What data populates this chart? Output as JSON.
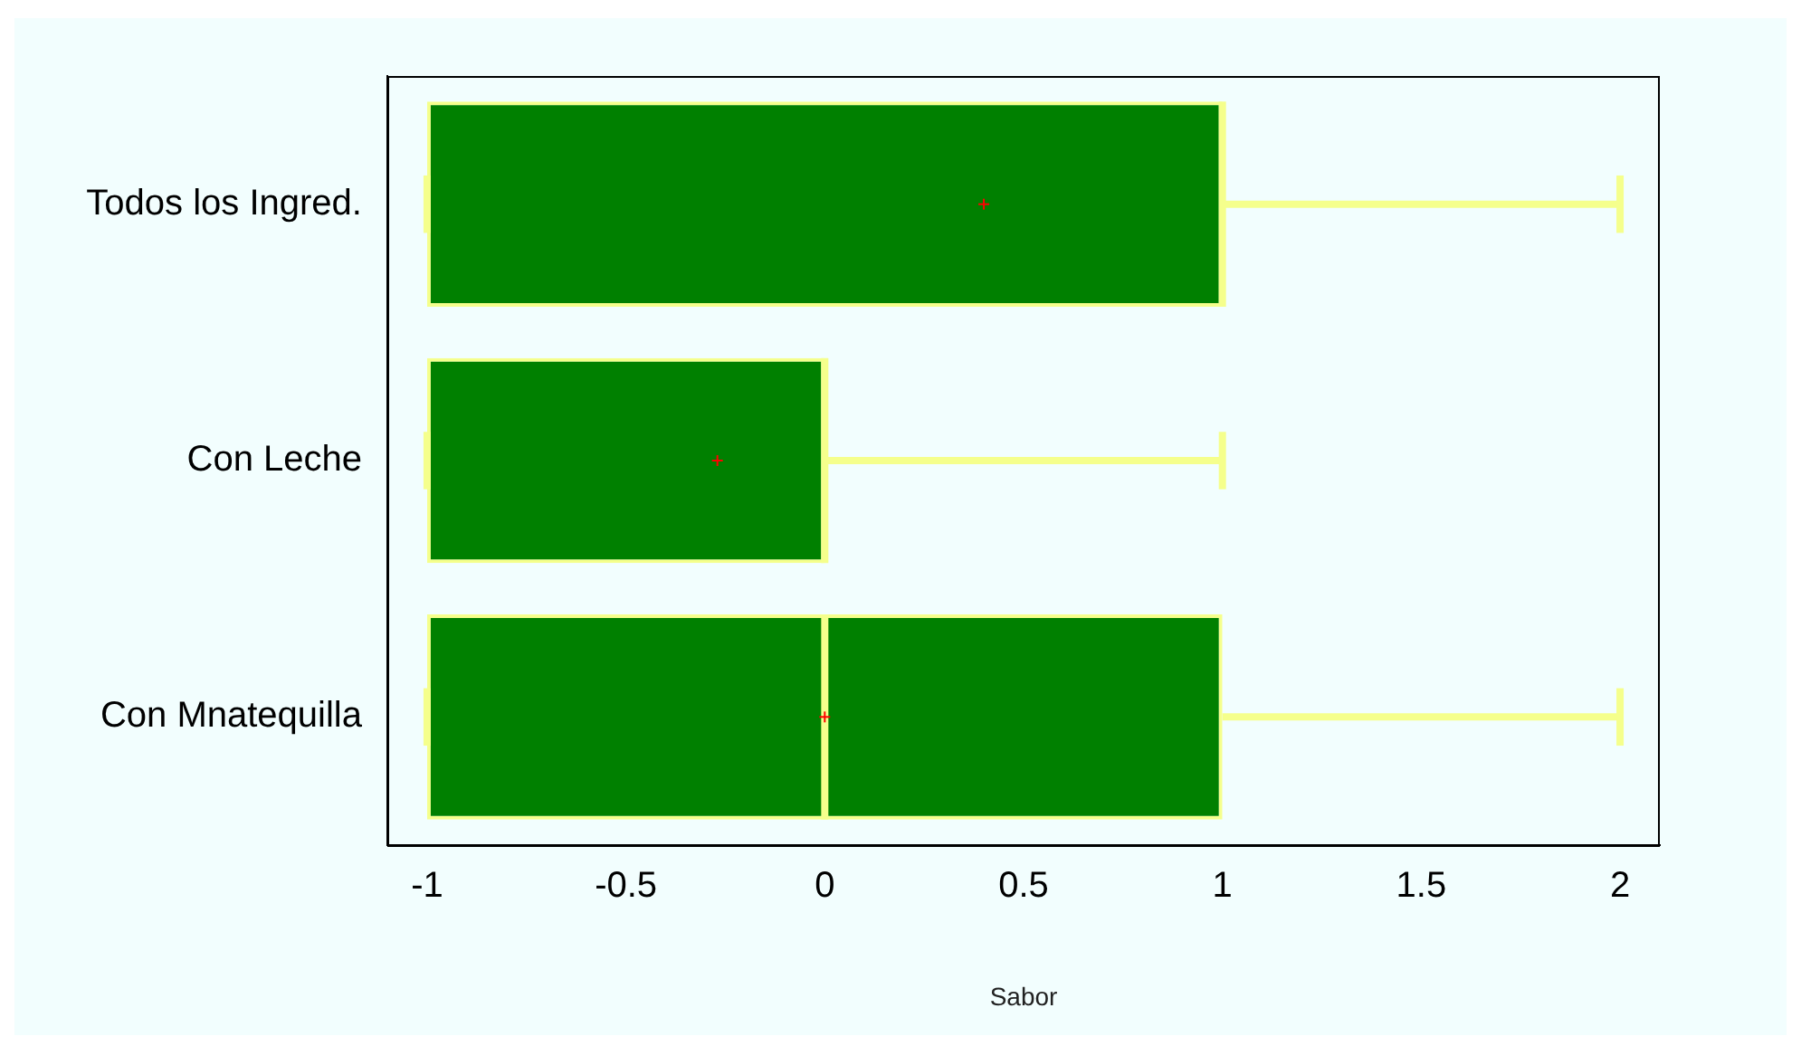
{
  "chart_data": {
    "type": "box",
    "orientation": "horizontal",
    "xlabel": "Sabor",
    "categories": [
      "Todos los Ingred.",
      "Con Leche",
      "Con Mnatequilla"
    ],
    "boxes": [
      {
        "low": -1,
        "q1": -1,
        "median": 1,
        "q3": 1,
        "high": 2,
        "mean": 0.4
      },
      {
        "low": -1,
        "q1": -1,
        "median": 0,
        "q3": 0,
        "high": 1,
        "mean": -0.27
      },
      {
        "low": -1,
        "q1": -1,
        "median": 0,
        "q3": 1,
        "high": 2,
        "mean": 0
      }
    ],
    "color": "#f5ff8c",
    "xlim": [
      -1.1,
      2.1
    ],
    "xticks": [
      -1,
      -0.5,
      0,
      0.5,
      1,
      1.5,
      2
    ],
    "grid": false,
    "legend": false
  }
}
